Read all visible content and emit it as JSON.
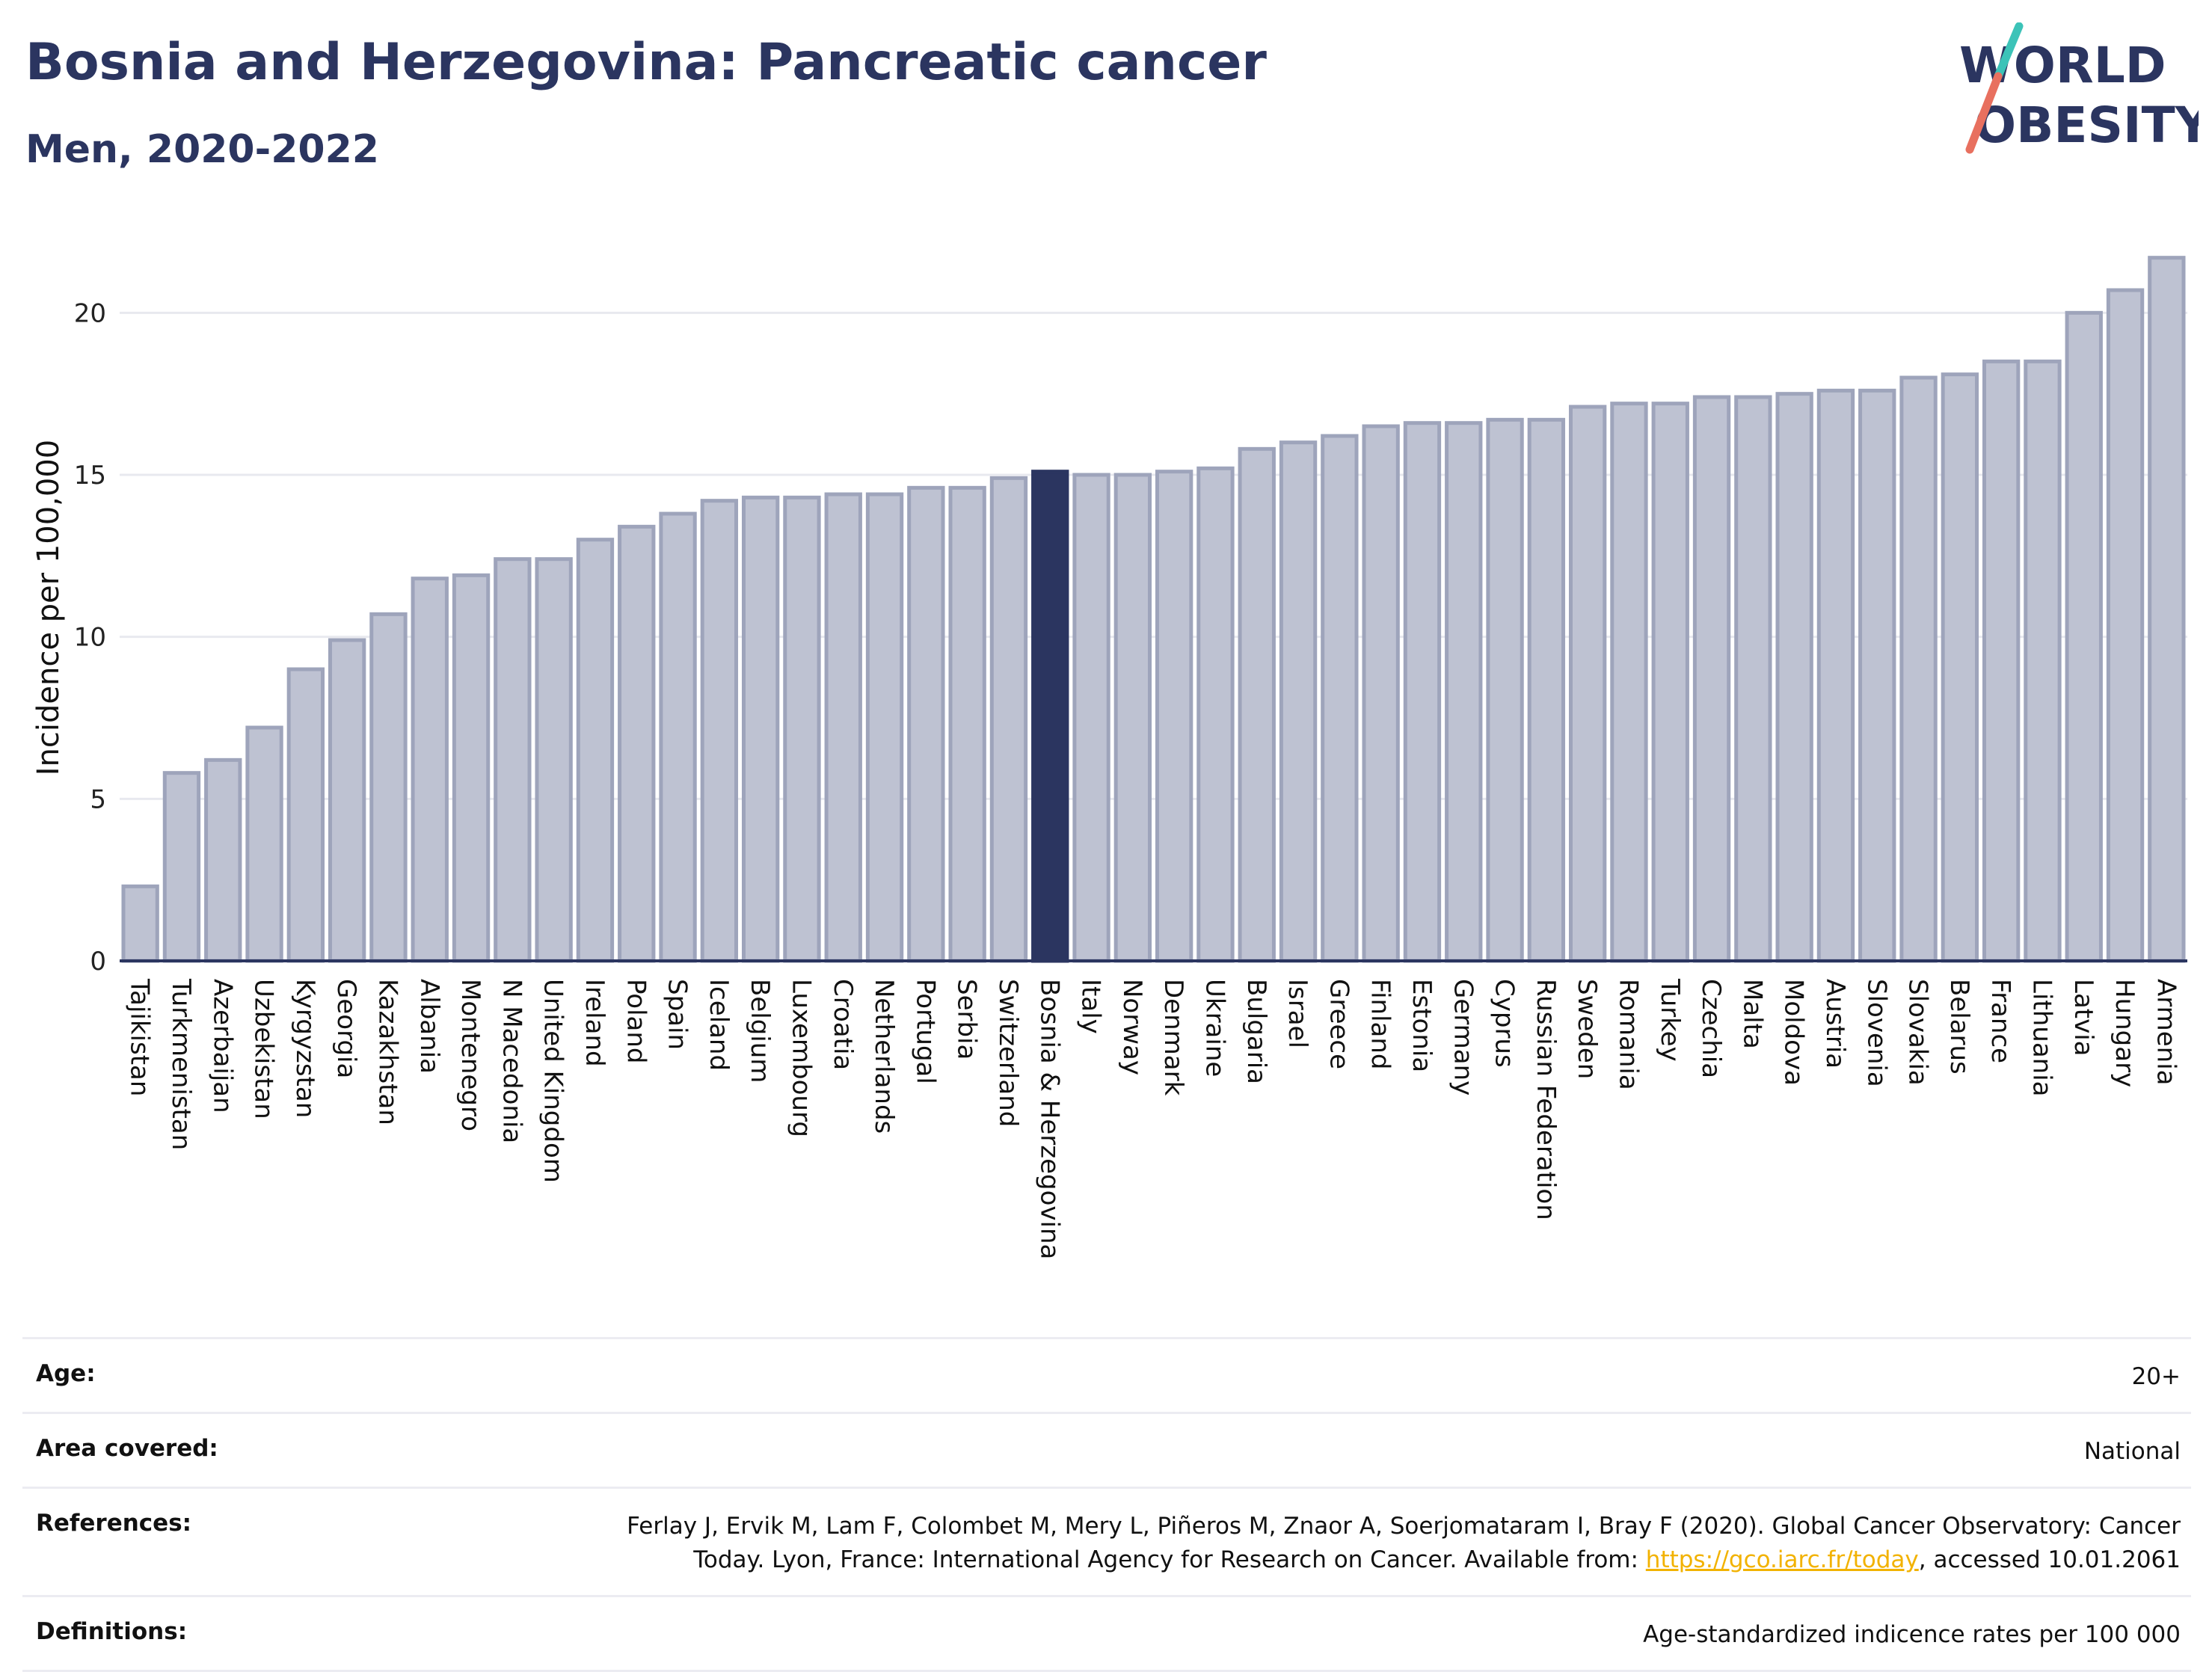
{
  "title": "Bosnia and Herzegovina: Pancreatic cancer",
  "subtitle": "Men, 2020-2022",
  "logo": {
    "line1": "WORLD",
    "line2": "OBESITY",
    "colors": {
      "text": "#2b3560",
      "slash_teal": "#3cc3b8",
      "slash_coral": "#e8705f"
    }
  },
  "chart_data": {
    "type": "bar",
    "ylabel": "Incidence per 100,000",
    "xlabel": "",
    "ylim": [
      0,
      22.5
    ],
    "yticks": [
      0,
      5,
      10,
      15,
      20
    ],
    "grid": true,
    "highlight": "Bosnia & Herzegovina",
    "colors": {
      "bar": "#bec2d2",
      "bar_border": "#9ea4bb",
      "highlight": "#2b3560"
    },
    "categories": [
      "Tajikistan",
      "Turkmenistan",
      "Azerbaijan",
      "Uzbekistan",
      "Kyrgyzstan",
      "Georgia",
      "Kazakhstan",
      "Albania",
      "Montenegro",
      "N Macedonia",
      "United Kingdom",
      "Ireland",
      "Poland",
      "Spain",
      "Iceland",
      "Belgium",
      "Luxembourg",
      "Croatia",
      "Netherlands",
      "Portugal",
      "Serbia",
      "Switzerland",
      "Bosnia & Herzegovina",
      "Italy",
      "Norway",
      "Denmark",
      "Ukraine",
      "Bulgaria",
      "Israel",
      "Greece",
      "Finland",
      "Estonia",
      "Germany",
      "Cyprus",
      "Russian Federation",
      "Sweden",
      "Romania",
      "Turkey",
      "Czechia",
      "Malta",
      "Moldova",
      "Austria",
      "Slovenia",
      "Slovakia",
      "Belarus",
      "France",
      "Lithuania",
      "Latvia",
      "Hungary",
      "Armenia"
    ],
    "values": [
      2.3,
      5.8,
      6.2,
      7.2,
      9.0,
      9.9,
      10.7,
      11.8,
      11.9,
      12.4,
      12.4,
      13.0,
      13.4,
      13.8,
      14.2,
      14.3,
      14.3,
      14.4,
      14.4,
      14.6,
      14.6,
      14.9,
      15.1,
      15.0,
      15.0,
      15.1,
      15.2,
      15.8,
      16.0,
      16.2,
      16.5,
      16.6,
      16.6,
      16.7,
      16.7,
      17.1,
      17.2,
      17.2,
      17.4,
      17.4,
      17.5,
      17.6,
      17.6,
      18.0,
      18.1,
      18.5,
      18.5,
      20.0,
      20.7,
      21.7
    ]
  },
  "info": {
    "age_label": "Age:",
    "age_value": "20+",
    "area_label": "Area covered:",
    "area_value": "National",
    "ref_label": "References:",
    "ref_text_1": "Ferlay J, Ervik M, Lam F, Colombet M, Mery L, Piñeros M, Znaor A, Soerjomataram I, Bray F (2020). Global Cancer Observatory: Cancer Today. Lyon, France: International Agency for Research on Cancer. Available from: ",
    "ref_link": "https://gco.iarc.fr/today",
    "ref_text_2": ", accessed 10.01.2061",
    "def_label": "Definitions:",
    "def_value": "Age-standardized indicence rates per 100 000"
  }
}
